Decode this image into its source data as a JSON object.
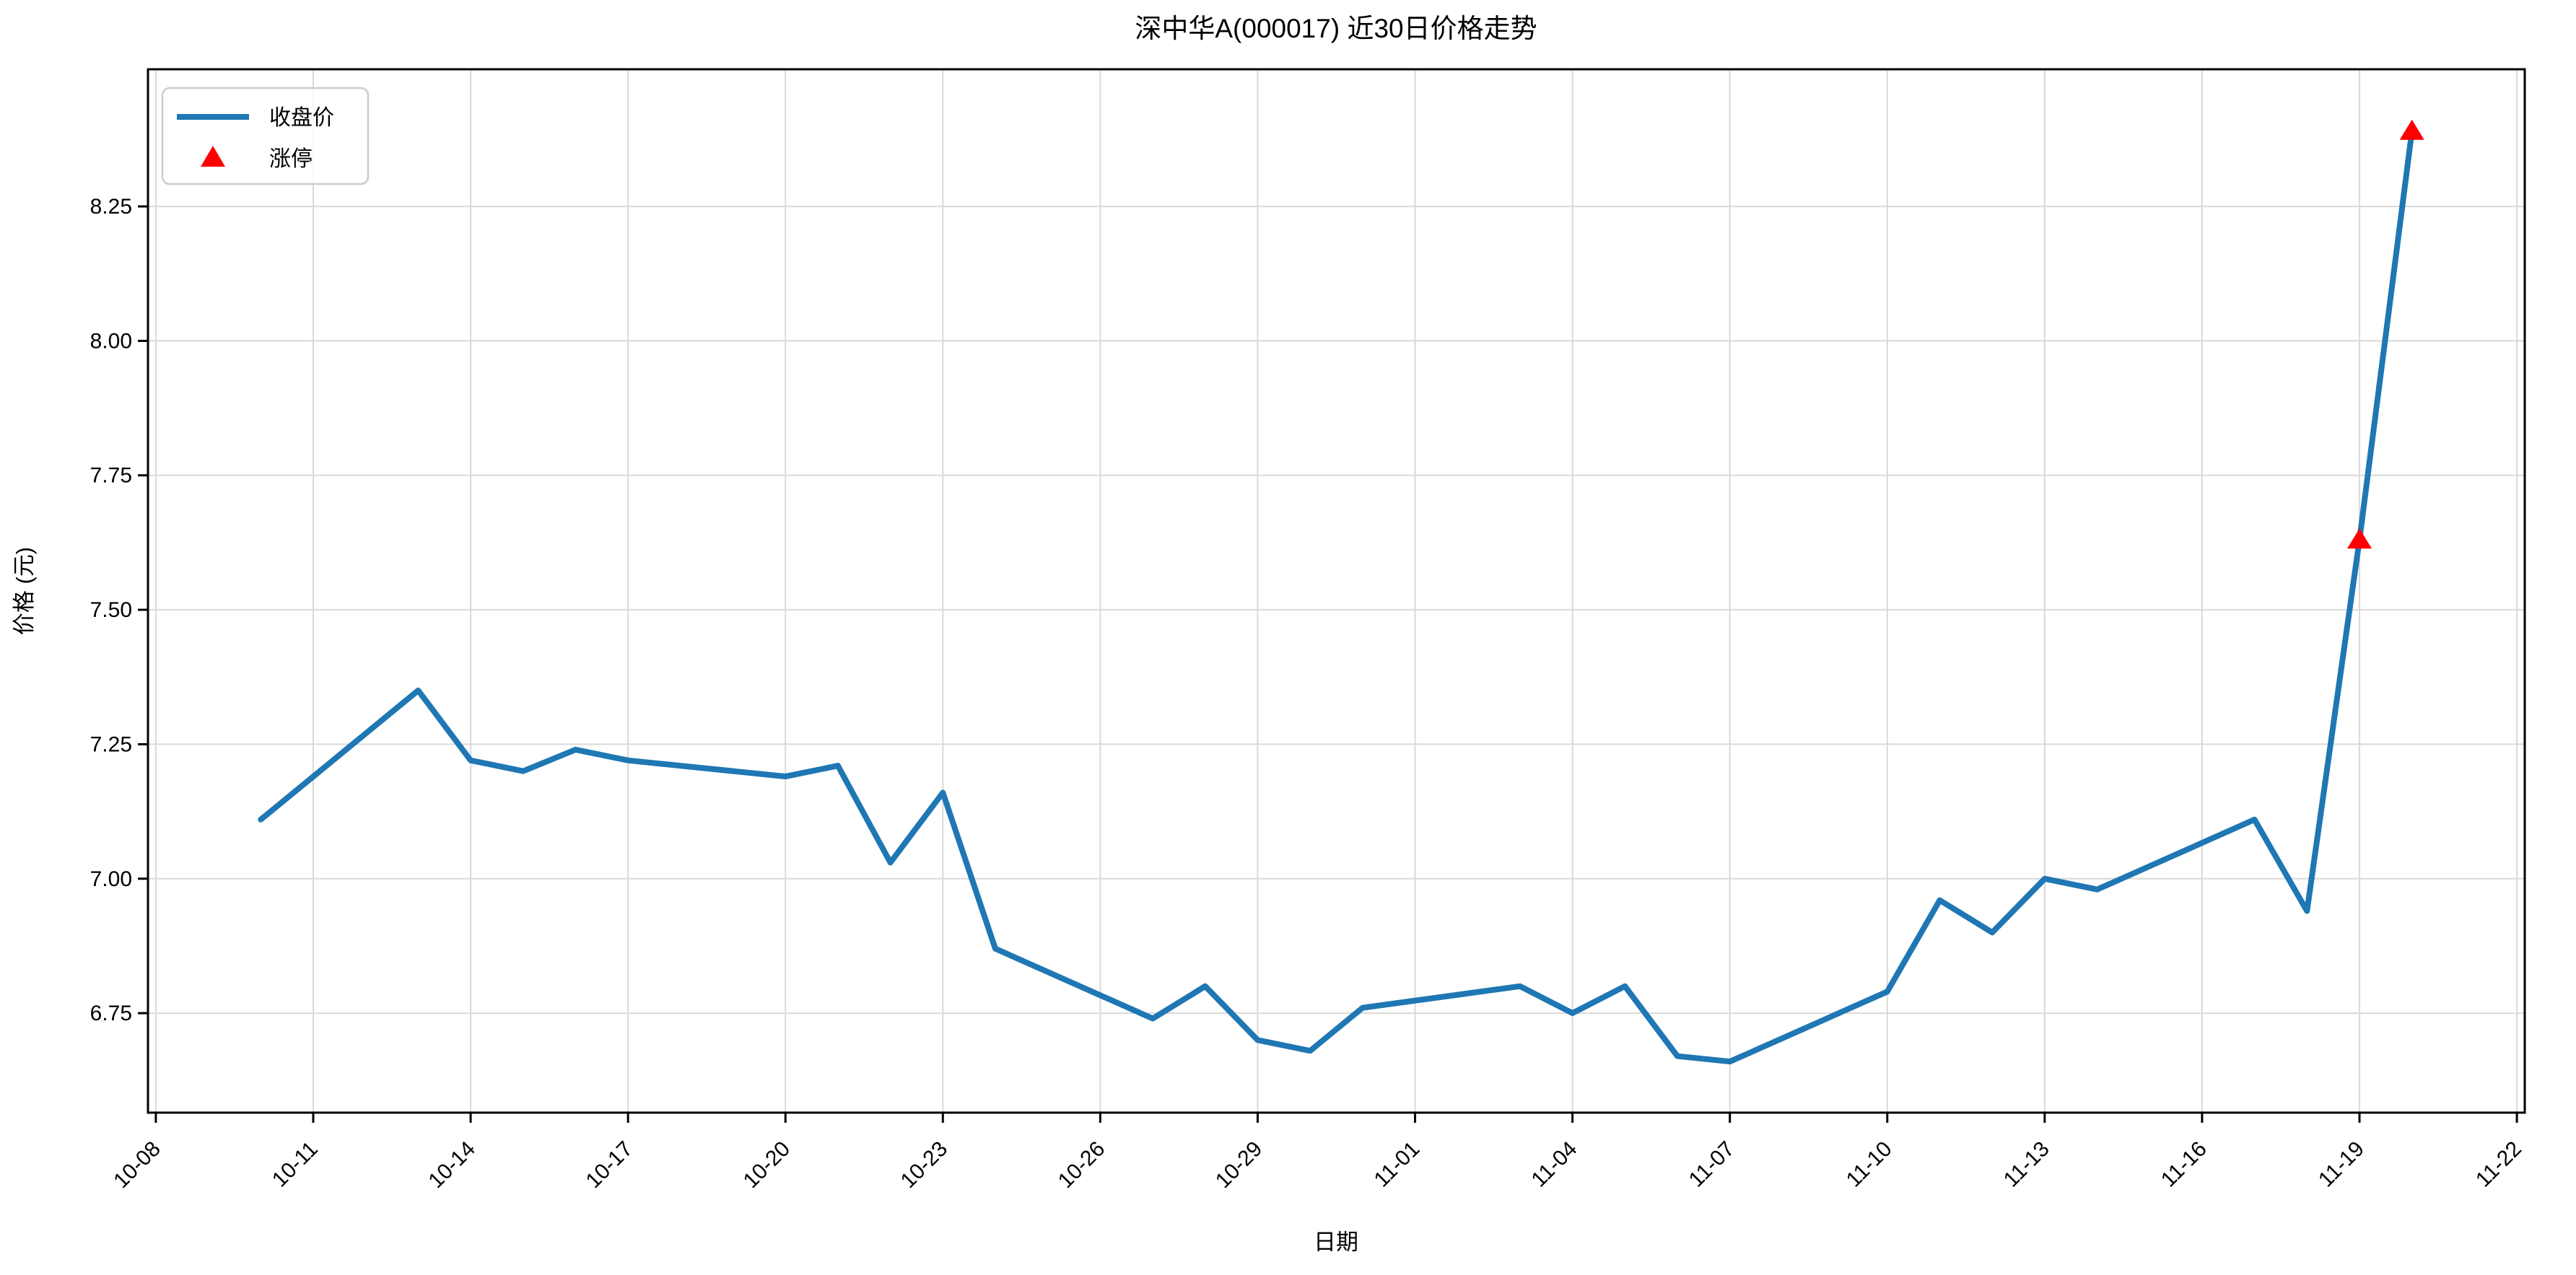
{
  "chart_data": {
    "type": "line",
    "title": "深中华A(000017) 近30日价格走势",
    "xlabel": "日期",
    "ylabel": "价格 (元)",
    "grid": true,
    "legend_position": "upper left",
    "x_tick_rotation": 45,
    "x_tick_labels": [
      "10-08",
      "10-11",
      "10-14",
      "10-17",
      "10-20",
      "10-23",
      "10-26",
      "10-29",
      "11-01",
      "11-04",
      "11-07",
      "11-10",
      "11-13",
      "11-16",
      "11-19",
      "11-22"
    ],
    "y_ticks": [
      6.75,
      7.0,
      7.25,
      7.5,
      7.75,
      8.0,
      8.25
    ],
    "y_tick_labels": [
      "6.75",
      "7.00",
      "7.25",
      "7.50",
      "7.75",
      "8.00",
      "8.25"
    ],
    "ylim": [
      6.565,
      8.505
    ],
    "xlim_dates": [
      "10-08",
      "11-22"
    ],
    "line_color": "#1f77b4",
    "marker_color": "#ff0000",
    "background_color": "#ffffff",
    "legend": [
      {
        "label": "收盘价",
        "marker": "line",
        "color": "#1f77b4"
      },
      {
        "label": "涨停",
        "marker": "triangle-up",
        "color": "#ff0000"
      }
    ],
    "series": [
      {
        "name": "收盘价",
        "dates": [
          "10-10",
          "10-13",
          "10-14",
          "10-15",
          "10-16",
          "10-17",
          "10-20",
          "10-21",
          "10-22",
          "10-23",
          "10-24",
          "10-27",
          "10-28",
          "10-29",
          "10-30",
          "10-31",
          "11-03",
          "11-04",
          "11-05",
          "11-06",
          "11-07",
          "11-10",
          "11-11",
          "11-12",
          "11-13",
          "11-14",
          "11-17",
          "11-18",
          "11-19",
          "11-20"
        ],
        "values": [
          7.11,
          7.35,
          7.22,
          7.2,
          7.24,
          7.22,
          7.19,
          7.21,
          7.03,
          7.16,
          6.87,
          6.74,
          6.8,
          6.7,
          6.68,
          6.76,
          6.8,
          6.75,
          6.8,
          6.67,
          6.66,
          6.79,
          6.96,
          6.9,
          7.0,
          6.98,
          7.11,
          6.94,
          7.63,
          8.39
        ]
      }
    ],
    "limit_up_points": [
      {
        "date": "11-19",
        "value": 7.63
      },
      {
        "date": "11-20",
        "value": 8.39
      }
    ]
  }
}
